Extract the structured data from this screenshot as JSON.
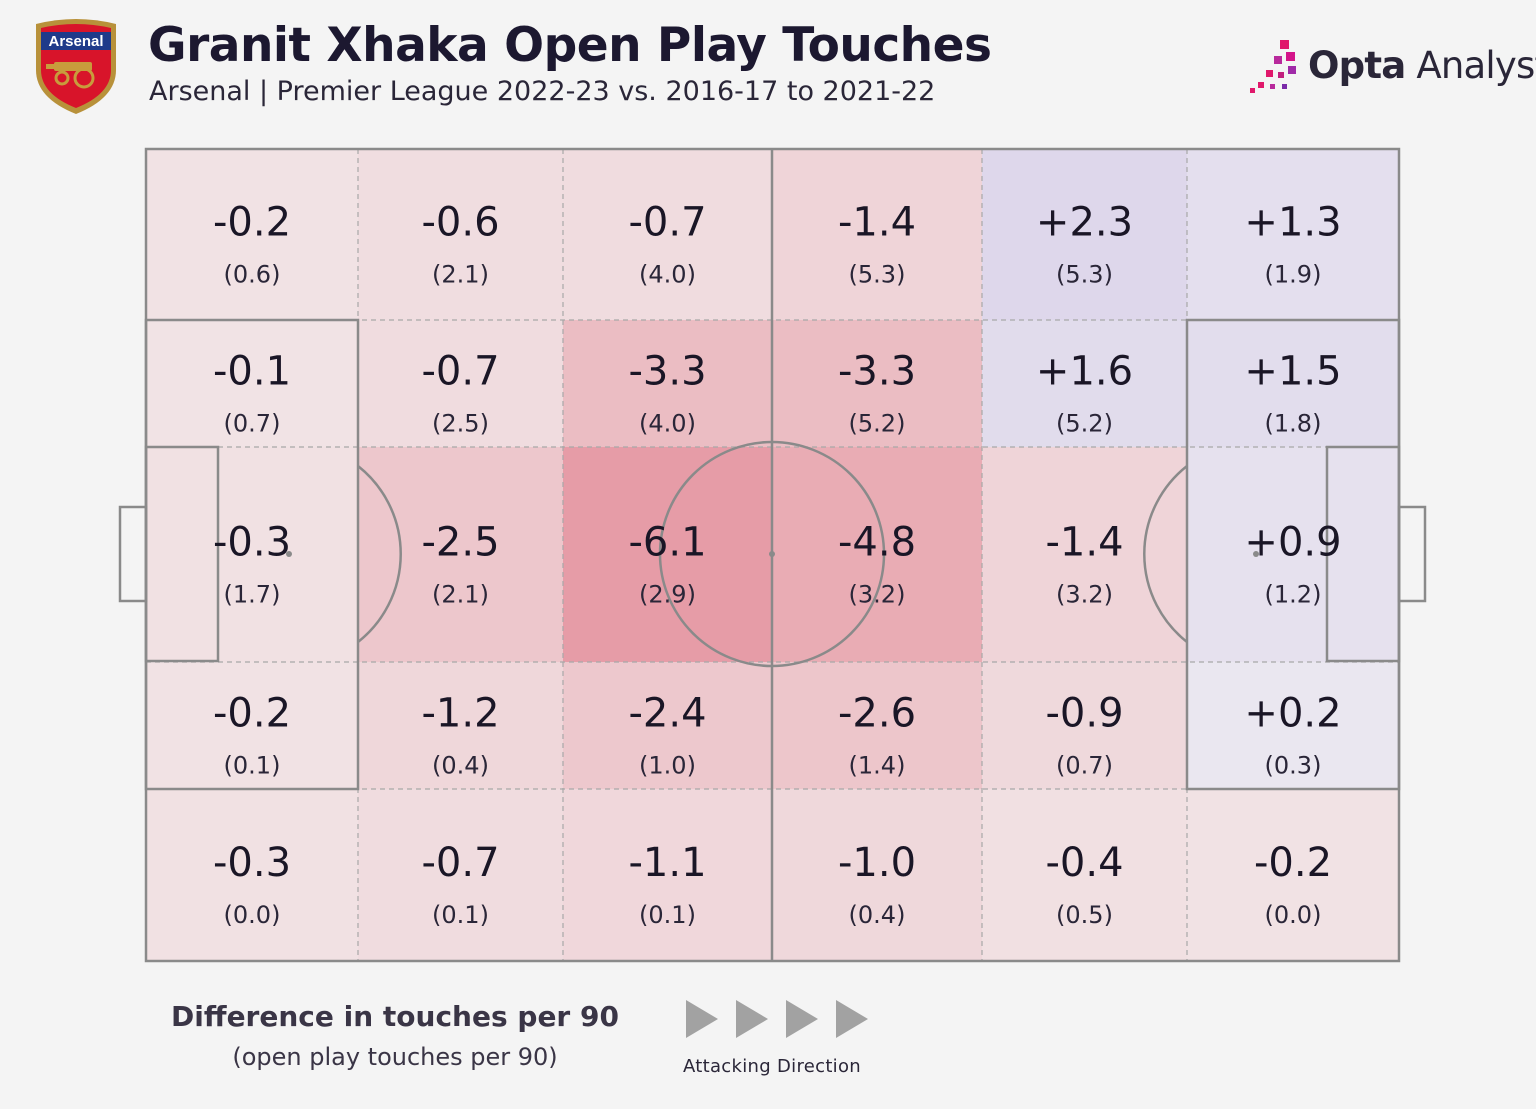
{
  "header": {
    "title": "Granit Xhaka Open Play Touches",
    "subtitle": "Arsenal | Premier League 2022-23 vs. 2016-17 to 2021-22"
  },
  "crest": {
    "text": "Arsenal"
  },
  "brand": {
    "bold": "Opta",
    "rest": " Analyst"
  },
  "legend": {
    "main": "Difference in touches per 90",
    "sub": "(open play touches per 90)",
    "direction": "Attacking Direction"
  },
  "colors": {
    "negative": "#d94a5e",
    "positive": "#9a7fd0",
    "background": "#f4f4f4",
    "pitch_line": "#8a8a8a"
  },
  "chart_data": {
    "type": "heatmap",
    "description_rows": "pitch zones, rows top to bottom, columns left (own goal) to right (attacking goal)",
    "rows": [
      [
        {
          "diff": "-0.2",
          "val": "(0.6)"
        },
        {
          "diff": "-0.6",
          "val": "(2.1)"
        },
        {
          "diff": "-0.7",
          "val": "(4.0)"
        },
        {
          "diff": "-1.4",
          "val": "(5.3)"
        },
        {
          "diff": "+2.3",
          "val": "(5.3)"
        },
        {
          "diff": "+1.3",
          "val": "(1.9)"
        }
      ],
      [
        {
          "diff": "-0.1",
          "val": "(0.7)"
        },
        {
          "diff": "-0.7",
          "val": "(2.5)"
        },
        {
          "diff": "-3.3",
          "val": "(4.0)"
        },
        {
          "diff": "-3.3",
          "val": "(5.2)"
        },
        {
          "diff": "+1.6",
          "val": "(5.2)"
        },
        {
          "diff": "+1.5",
          "val": "(1.8)"
        }
      ],
      [
        {
          "diff": "-0.3",
          "val": "(1.7)"
        },
        {
          "diff": "-2.5",
          "val": "(2.1)"
        },
        {
          "diff": "-6.1",
          "val": "(2.9)"
        },
        {
          "diff": "-4.8",
          "val": "(3.2)"
        },
        {
          "diff": "-1.4",
          "val": "(3.2)"
        },
        {
          "diff": "+0.9",
          "val": "(1.2)"
        }
      ],
      [
        {
          "diff": "-0.2",
          "val": "(0.1)"
        },
        {
          "diff": "-1.2",
          "val": "(0.4)"
        },
        {
          "diff": "-2.4",
          "val": "(1.0)"
        },
        {
          "diff": "-2.6",
          "val": "(1.4)"
        },
        {
          "diff": "-0.9",
          "val": "(0.7)"
        },
        {
          "diff": "+0.2",
          "val": "(0.3)"
        }
      ],
      [
        {
          "diff": "-0.3",
          "val": "(0.0)"
        },
        {
          "diff": "-0.7",
          "val": "(0.1)"
        },
        {
          "diff": "-1.1",
          "val": "(0.1)"
        },
        {
          "diff": "-1.0",
          "val": "(0.4)"
        },
        {
          "diff": "-0.4",
          "val": "(0.5)"
        },
        {
          "diff": "-0.2",
          "val": "(0.0)"
        }
      ]
    ]
  }
}
